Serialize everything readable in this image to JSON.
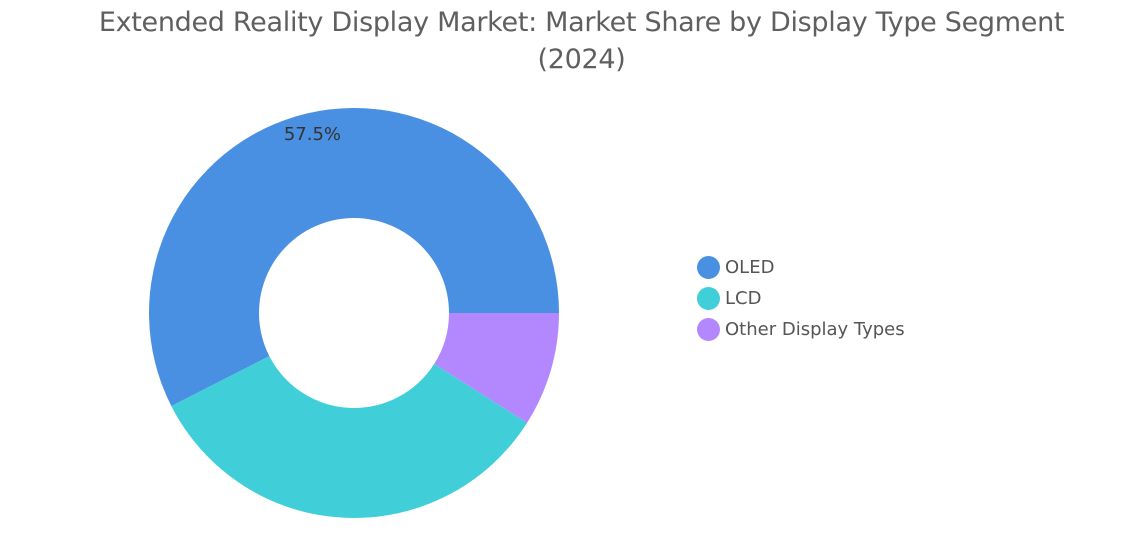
{
  "chart_data": {
    "type": "pie",
    "title": "Extended Reality Display Market: Market Share by Display Type Segment",
    "subtitle": "(2024)",
    "categories": [
      "OLED",
      "LCD",
      "Other Display Types"
    ],
    "values": [
      57.5,
      33.5,
      9.0
    ],
    "colors": [
      "#4a90e2",
      "#40cfd9",
      "#b388ff"
    ],
    "data_labels": [
      "57.5%",
      "",
      ""
    ],
    "legend_position": "right"
  }
}
